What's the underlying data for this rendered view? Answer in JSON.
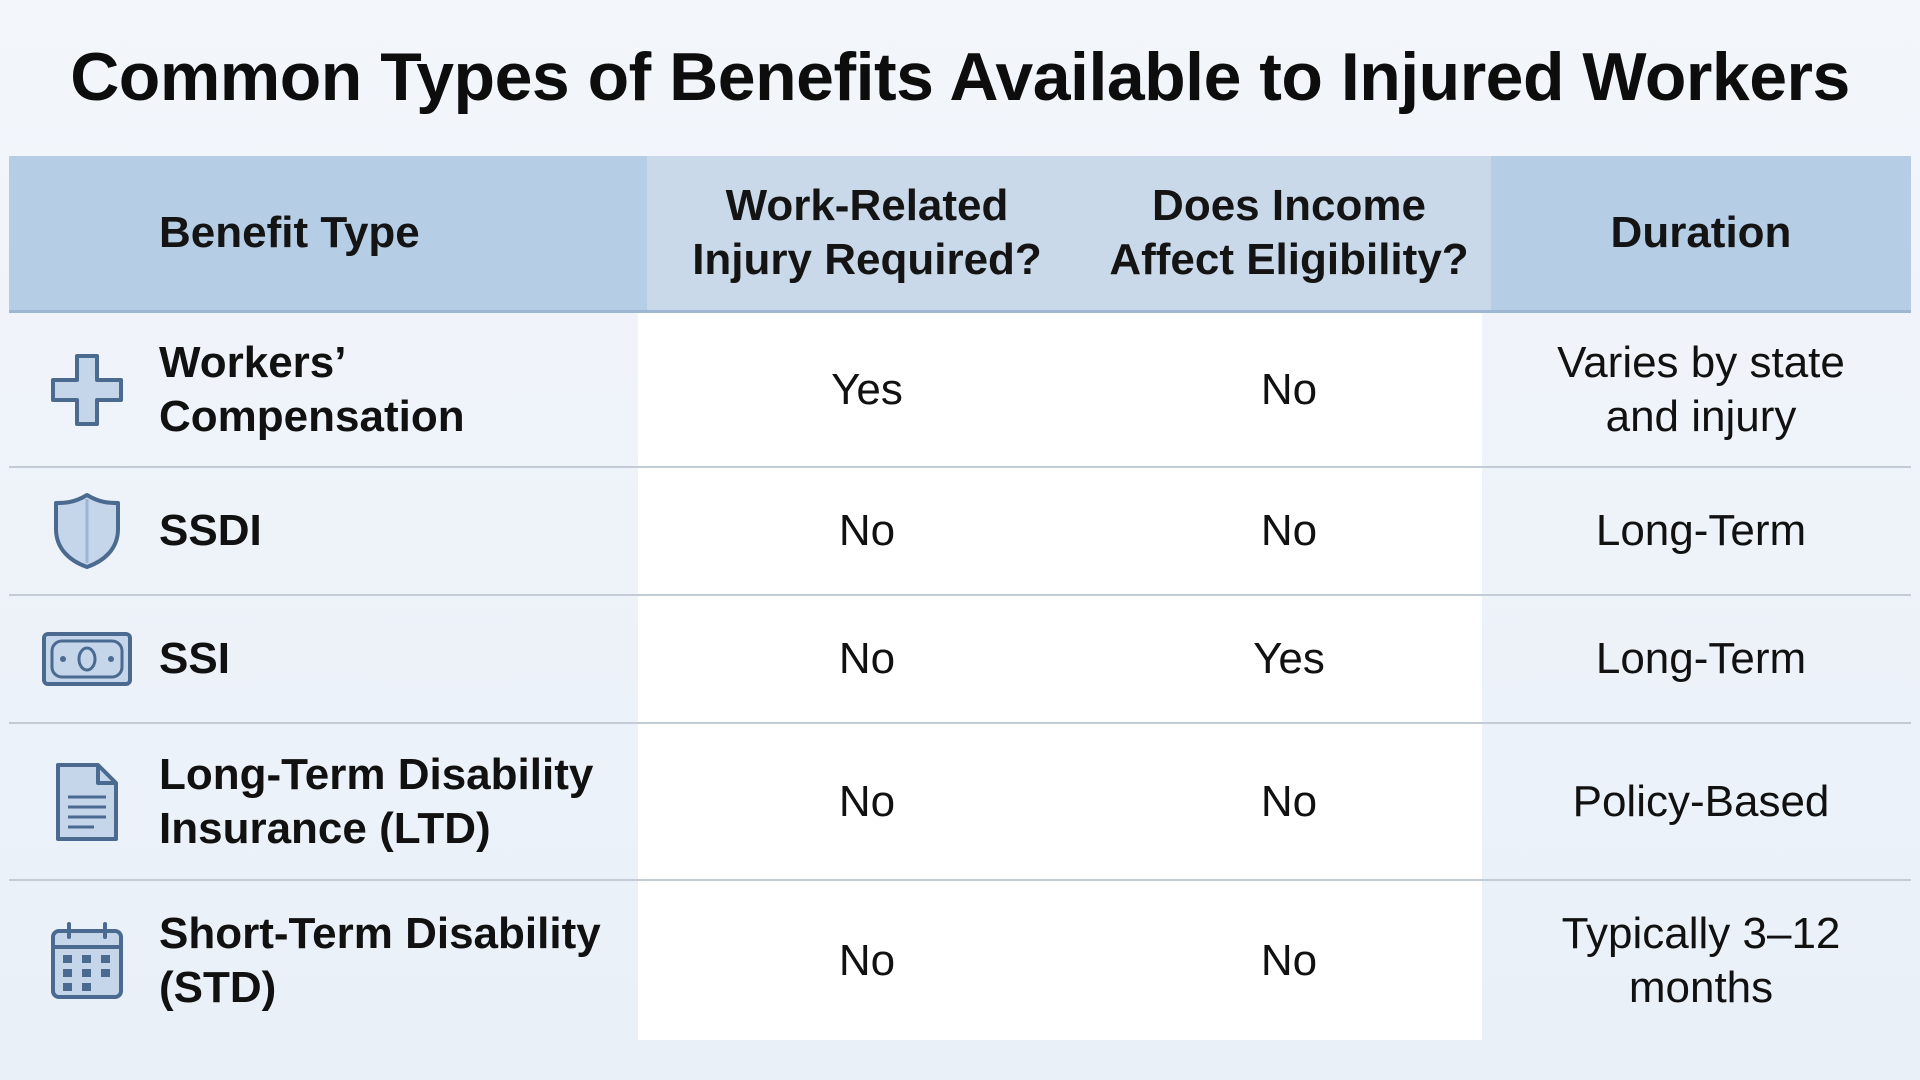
{
  "title": "Common Types of Benefits Available to Injured Workers",
  "colors": {
    "header_bg": "#b6cde6",
    "header_mid_bg": "#c9d9ea",
    "icon_stroke": "#4a6a90",
    "icon_fill": "#c5d6ea"
  },
  "table": {
    "headers": {
      "benefit_type": "Benefit Type",
      "work_related": [
        "Work-Related",
        "Injury Required?"
      ],
      "income_affects": [
        "Does Income",
        "Affect Eligibility?"
      ],
      "duration": "Duration"
    },
    "rows": [
      {
        "icon": "medical-cross-icon",
        "name": [
          "Workers’",
          "Compensation"
        ],
        "work_related": "Yes",
        "income_affects": "No",
        "duration": [
          "Varies by state",
          "and injury"
        ]
      },
      {
        "icon": "shield-icon",
        "name": [
          "SSDI"
        ],
        "work_related": "No",
        "income_affects": "No",
        "duration": [
          "Long-Term"
        ]
      },
      {
        "icon": "cash-bill-icon",
        "name": [
          "SSI"
        ],
        "work_related": "No",
        "income_affects": "Yes",
        "duration": [
          "Long-Term"
        ]
      },
      {
        "icon": "document-icon",
        "name": [
          "Long-Term Disability",
          "Insurance (LTD)"
        ],
        "work_related": "No",
        "income_affects": "No",
        "duration": [
          "Policy-Based"
        ]
      },
      {
        "icon": "calendar-icon",
        "name": [
          "Short-Term Disability",
          "(STD)"
        ],
        "work_related": "No",
        "income_affects": "No",
        "duration": [
          "Typically 3–12",
          "months"
        ]
      }
    ]
  }
}
